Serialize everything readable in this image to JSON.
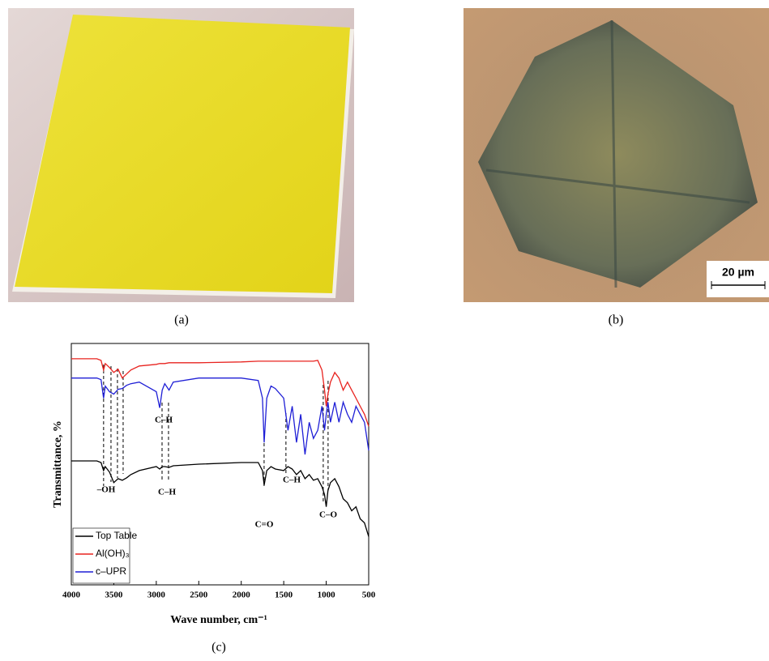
{
  "panels": {
    "a": {
      "label": "(a)"
    },
    "b": {
      "label": "(b)",
      "scale_bar": "20 µm"
    },
    "c": {
      "label": "(c)"
    }
  },
  "chart_data": {
    "type": "line",
    "xlabel": "Wave number, cm⁻¹",
    "ylabel": "Transmittance, %",
    "xlim": [
      4000,
      500
    ],
    "xticks": [
      4000,
      3500,
      3000,
      2500,
      2000,
      1500,
      1000,
      500
    ],
    "ylim": [
      0,
      300
    ],
    "x": [
      4000,
      3700,
      3650,
      3620,
      3600,
      3550,
      3500,
      3450,
      3400,
      3350,
      3300,
      3200,
      3000,
      2960,
      2930,
      2900,
      2850,
      2800,
      2500,
      2000,
      1800,
      1750,
      1730,
      1700,
      1650,
      1600,
      1500,
      1450,
      1400,
      1350,
      1300,
      1250,
      1200,
      1150,
      1100,
      1050,
      1020,
      1000,
      980,
      950,
      900,
      850,
      800,
      750,
      700,
      650,
      600,
      550,
      500
    ],
    "series": [
      {
        "name": "Top Table",
        "color": "#000000",
        "values": [
          154,
          154,
          152,
          142,
          147,
          140,
          127,
          132,
          130,
          133,
          137,
          142,
          147,
          144,
          147,
          147,
          146,
          148,
          150,
          152,
          152,
          142,
          124,
          142,
          147,
          144,
          142,
          147,
          144,
          137,
          142,
          132,
          137,
          130,
          132,
          122,
          112,
          97,
          117,
          127,
          132,
          122,
          107,
          102,
          92,
          97,
          82,
          77,
          60
        ]
      },
      {
        "name": "Al(OH)₃",
        "color": "#e8231f",
        "values": [
          281,
          281,
          279,
          267,
          275,
          270,
          264,
          268,
          257,
          262,
          267,
          272,
          274,
          275,
          275,
          275,
          276,
          276,
          276,
          277,
          278,
          278,
          278,
          278,
          278,
          278,
          278,
          278,
          278,
          278,
          278,
          278,
          278,
          278,
          279,
          267,
          242,
          222,
          237,
          252,
          264,
          257,
          242,
          252,
          242,
          232,
          222,
          212,
          197
        ]
      },
      {
        "name": "c–UPR",
        "color": "#1f1fd6",
        "values": [
          257,
          257,
          255,
          232,
          247,
          240,
          237,
          243,
          244,
          248,
          250,
          252,
          240,
          220,
          242,
          250,
          242,
          252,
          257,
          257,
          254,
          232,
          177,
          232,
          247,
          244,
          232,
          192,
          222,
          177,
          212,
          162,
          202,
          182,
          192,
          222,
          192,
          212,
          227,
          202,
          227,
          202,
          227,
          212,
          202,
          222,
          212,
          202,
          167
        ]
      }
    ],
    "peak_lines": [
      3620,
      3533,
      3457,
      3390,
      2932,
      2856,
      1731,
      1474,
      1035,
      978
    ],
    "annotations": [
      "C–H",
      "–OH",
      "C–H",
      "C=O",
      "C–H",
      "C–O"
    ],
    "legend": "lower left"
  }
}
